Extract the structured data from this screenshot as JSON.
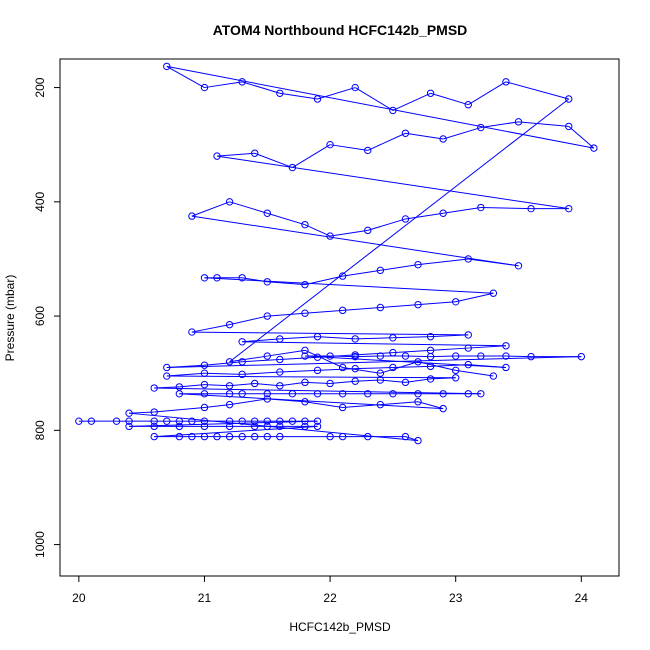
{
  "chart_data": {
    "type": "line",
    "title": "ATOM4 Northbound HCFC142b_PMSD",
    "xlabel": "HCFC142b_PMSD",
    "ylabel": "Pressure (mbar)",
    "xlim": [
      19.85,
      24.3
    ],
    "ylim": [
      1055,
      150
    ],
    "y_inverted": true,
    "x_ticks": [
      20,
      21,
      22,
      23,
      24
    ],
    "y_ticks": [
      200,
      400,
      600,
      800,
      1000
    ],
    "grid": false,
    "series_color": "#0000ff",
    "series": [
      {
        "marker": "open-circle",
        "points": [
          [
            20.0,
            784
          ],
          [
            20.1,
            784
          ],
          [
            20.3,
            784
          ],
          [
            20.4,
            784
          ],
          [
            20.6,
            784
          ],
          [
            20.7,
            784
          ],
          [
            20.8,
            784
          ],
          [
            20.9,
            784
          ],
          [
            21.0,
            784
          ],
          [
            21.2,
            784
          ],
          [
            21.3,
            784
          ],
          [
            21.4,
            784
          ],
          [
            21.5,
            784
          ],
          [
            21.6,
            784
          ],
          [
            21.7,
            784
          ],
          [
            21.8,
            784
          ],
          [
            21.9,
            784
          ],
          [
            20.4,
            793
          ],
          [
            20.6,
            793
          ],
          [
            20.8,
            793
          ],
          [
            21.0,
            793
          ],
          [
            21.2,
            793
          ],
          [
            21.4,
            793
          ],
          [
            21.5,
            793
          ],
          [
            21.6,
            793
          ],
          [
            21.8,
            793
          ],
          [
            21.9,
            793
          ],
          [
            20.6,
            811
          ],
          [
            20.8,
            811
          ],
          [
            20.9,
            811
          ],
          [
            21.0,
            811
          ],
          [
            21.1,
            811
          ],
          [
            21.2,
            811
          ],
          [
            21.3,
            811
          ],
          [
            21.4,
            811
          ],
          [
            21.5,
            811
          ],
          [
            21.6,
            811
          ],
          [
            22.0,
            811
          ],
          [
            22.1,
            811
          ],
          [
            22.3,
            811
          ],
          [
            22.6,
            811
          ],
          [
            22.7,
            818
          ],
          [
            20.4,
            770
          ],
          [
            20.6,
            768
          ],
          [
            21.0,
            760
          ],
          [
            21.2,
            755
          ],
          [
            21.5,
            745
          ],
          [
            21.8,
            750
          ],
          [
            22.1,
            760
          ],
          [
            22.4,
            755
          ],
          [
            22.7,
            750
          ],
          [
            22.9,
            762
          ],
          [
            20.8,
            736
          ],
          [
            21.0,
            736
          ],
          [
            21.2,
            736
          ],
          [
            21.3,
            736
          ],
          [
            21.5,
            736
          ],
          [
            21.7,
            736
          ],
          [
            21.9,
            736
          ],
          [
            22.1,
            736
          ],
          [
            22.3,
            736
          ],
          [
            22.5,
            736
          ],
          [
            22.7,
            736
          ],
          [
            22.9,
            736
          ],
          [
            23.1,
            736
          ],
          [
            23.2,
            736
          ],
          [
            20.6,
            726
          ],
          [
            20.8,
            724
          ],
          [
            21.0,
            720
          ],
          [
            21.2,
            722
          ],
          [
            21.4,
            718
          ],
          [
            21.6,
            722
          ],
          [
            21.8,
            716
          ],
          [
            22.0,
            718
          ],
          [
            22.2,
            714
          ],
          [
            22.4,
            712
          ],
          [
            22.6,
            716
          ],
          [
            22.8,
            710
          ],
          [
            23.0,
            708
          ],
          [
            20.7,
            705
          ],
          [
            21.0,
            700
          ],
          [
            21.3,
            702
          ],
          [
            21.6,
            698
          ],
          [
            21.9,
            695
          ],
          [
            22.2,
            692
          ],
          [
            22.5,
            690
          ],
          [
            22.8,
            688
          ],
          [
            23.1,
            685
          ],
          [
            23.4,
            690
          ],
          [
            21.8,
            670
          ],
          [
            22.0,
            670
          ],
          [
            22.2,
            671
          ],
          [
            22.4,
            670
          ],
          [
            22.6,
            670
          ],
          [
            22.8,
            671
          ],
          [
            23.0,
            670
          ],
          [
            23.2,
            670
          ],
          [
            23.4,
            670
          ],
          [
            23.6,
            671
          ],
          [
            24.0,
            671
          ],
          [
            20.7,
            690
          ],
          [
            21.0,
            686
          ],
          [
            21.3,
            680
          ],
          [
            21.6,
            676
          ],
          [
            21.9,
            672
          ],
          [
            22.2,
            668
          ],
          [
            22.5,
            664
          ],
          [
            22.8,
            660
          ],
          [
            23.1,
            656
          ],
          [
            23.4,
            652
          ],
          [
            21.3,
            645
          ],
          [
            21.6,
            640
          ],
          [
            21.9,
            636
          ],
          [
            22.2,
            640
          ],
          [
            22.5,
            638
          ],
          [
            22.8,
            636
          ],
          [
            23.1,
            633
          ],
          [
            20.9,
            628
          ],
          [
            21.2,
            615
          ],
          [
            21.5,
            600
          ],
          [
            21.8,
            595
          ],
          [
            22.1,
            590
          ],
          [
            22.4,
            585
          ],
          [
            22.7,
            580
          ],
          [
            23.0,
            575
          ],
          [
            23.3,
            560
          ],
          [
            21.0,
            533
          ],
          [
            21.1,
            533
          ],
          [
            21.3,
            533
          ],
          [
            21.5,
            540
          ],
          [
            21.8,
            545
          ],
          [
            22.1,
            530
          ],
          [
            22.4,
            520
          ],
          [
            22.7,
            510
          ],
          [
            23.1,
            500
          ],
          [
            23.5,
            512
          ],
          [
            20.9,
            425
          ],
          [
            21.2,
            400
          ],
          [
            21.5,
            420
          ],
          [
            21.8,
            440
          ],
          [
            22.0,
            460
          ],
          [
            22.3,
            450
          ],
          [
            22.6,
            430
          ],
          [
            22.9,
            420
          ],
          [
            23.2,
            410
          ],
          [
            23.6,
            412
          ],
          [
            23.9,
            412
          ],
          [
            21.1,
            320
          ],
          [
            21.4,
            315
          ],
          [
            21.7,
            340
          ],
          [
            22.0,
            300
          ],
          [
            22.3,
            310
          ],
          [
            22.6,
            280
          ],
          [
            22.9,
            290
          ],
          [
            23.2,
            270
          ],
          [
            23.5,
            260
          ],
          [
            23.9,
            268
          ],
          [
            24.1,
            306
          ],
          [
            20.7,
            163
          ],
          [
            21.0,
            200
          ],
          [
            21.3,
            190
          ],
          [
            21.6,
            210
          ],
          [
            21.9,
            220
          ],
          [
            22.2,
            200
          ],
          [
            22.5,
            240
          ],
          [
            22.8,
            210
          ],
          [
            23.1,
            230
          ],
          [
            23.4,
            190
          ],
          [
            23.9,
            220
          ],
          [
            21.2,
            680
          ],
          [
            21.5,
            670
          ],
          [
            21.8,
            660
          ],
          [
            22.1,
            690
          ],
          [
            22.4,
            700
          ],
          [
            22.7,
            680
          ],
          [
            23.0,
            695
          ],
          [
            23.3,
            705
          ]
        ]
      }
    ]
  }
}
